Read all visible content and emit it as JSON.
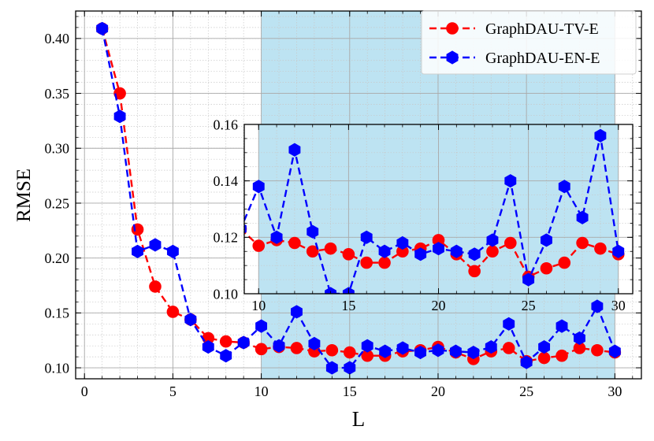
{
  "chart_data": {
    "type": "line",
    "title": "",
    "xlabel": "L",
    "ylabel": "RMSE",
    "xlim": [
      -0.5,
      31.5
    ],
    "ylim": [
      0.09,
      0.425
    ],
    "xticks": [
      0,
      5,
      10,
      15,
      20,
      25,
      30
    ],
    "yticks": [
      0.1,
      0.15,
      0.2,
      0.25,
      0.3,
      0.35,
      0.4
    ],
    "ytick_labels": [
      "0.10",
      "0.15",
      "0.20",
      "0.25",
      "0.30",
      "0.35",
      "0.40"
    ],
    "grid": true,
    "legend_position": "top-right",
    "shaded_region": {
      "x_from": 10,
      "x_to": 30,
      "color": "#bde3f2"
    },
    "series": [
      {
        "name": "GraphDAU-TV-E",
        "color": "#ff0000",
        "marker": "circle",
        "x": [
          1,
          2,
          3,
          4,
          5,
          6,
          7,
          8,
          9,
          10,
          11,
          12,
          13,
          14,
          15,
          16,
          17,
          18,
          19,
          20,
          21,
          22,
          23,
          24,
          25,
          26,
          27,
          28,
          29,
          30
        ],
        "values": [
          0.409,
          0.35,
          0.226,
          0.174,
          0.151,
          0.144,
          0.127,
          0.124,
          0.123,
          0.117,
          0.119,
          0.118,
          0.115,
          0.116,
          0.114,
          0.111,
          0.111,
          0.115,
          0.116,
          0.119,
          0.114,
          0.108,
          0.115,
          0.118,
          0.106,
          0.109,
          0.111,
          0.118,
          0.116,
          0.114
        ]
      },
      {
        "name": "GraphDAU-EN-E",
        "color": "#0000ff",
        "marker": "hexagon",
        "x": [
          1,
          2,
          3,
          4,
          5,
          6,
          7,
          8,
          9,
          10,
          11,
          12,
          13,
          14,
          15,
          16,
          17,
          18,
          19,
          20,
          21,
          22,
          23,
          24,
          25,
          26,
          27,
          28,
          29,
          30
        ],
        "values": [
          0.409,
          0.329,
          0.206,
          0.212,
          0.206,
          0.144,
          0.119,
          0.111,
          0.123,
          0.138,
          0.12,
          0.151,
          0.122,
          0.1,
          0.1,
          0.12,
          0.115,
          0.118,
          0.114,
          0.116,
          0.115,
          0.114,
          0.119,
          0.14,
          0.105,
          0.119,
          0.138,
          0.127,
          0.156,
          0.115
        ]
      }
    ],
    "inset": {
      "xlim": [
        9.2,
        30.8
      ],
      "ylim": [
        0.1,
        0.16
      ],
      "xticks": [
        10,
        15,
        20,
        25,
        30
      ],
      "yticks": [
        0.1,
        0.12,
        0.14,
        0.16
      ],
      "ytick_labels": [
        "0.10",
        "0.12",
        "0.14",
        "0.16"
      ]
    }
  }
}
